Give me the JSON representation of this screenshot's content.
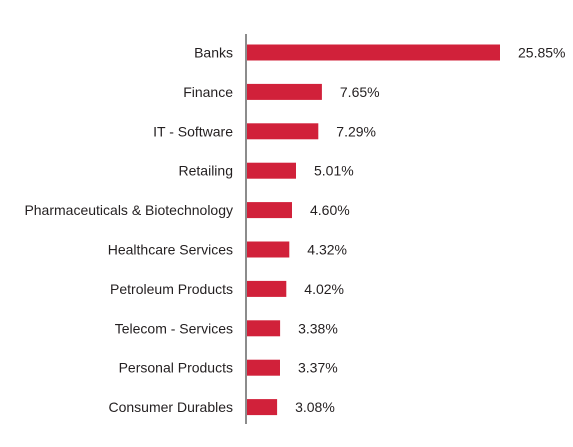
{
  "chart_data": {
    "type": "bar",
    "orientation": "horizontal",
    "categories": [
      "Banks",
      "Finance",
      "IT - Software",
      "Retailing",
      "Pharmaceuticals & Biotechnology",
      "Healthcare Services",
      "Petroleum Products",
      "Telecom - Services",
      "Personal Products",
      "Consumer Durables"
    ],
    "values": [
      25.85,
      7.65,
      7.29,
      5.01,
      4.6,
      4.32,
      4.02,
      3.38,
      3.37,
      3.08
    ],
    "value_labels": [
      "25.85%",
      "7.65%",
      "7.29%",
      "5.01%",
      "4.60%",
      "4.32%",
      "4.02%",
      "3.38%",
      "3.37%",
      "3.08%"
    ],
    "title": "",
    "xlabel": "",
    "ylabel": "",
    "xlim": [
      0,
      26
    ],
    "grid": false,
    "bar_color": "#d1213a",
    "axis_color": "#8c8c8c",
    "text_color": "#231f20"
  }
}
